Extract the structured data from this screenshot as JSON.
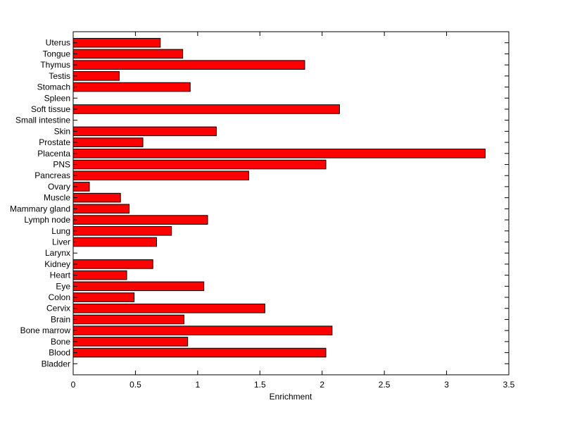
{
  "chart_data": {
    "type": "bar",
    "orientation": "horizontal",
    "title": "",
    "xlabel": "Enrichment",
    "ylabel": "",
    "xlim": [
      0,
      3.5
    ],
    "xticks": [
      "0",
      "0.5",
      "1",
      "1.5",
      "2",
      "2.5",
      "3",
      "3.5"
    ],
    "grid": false,
    "bar_color": "#ff0000",
    "categories": [
      "Bladder",
      "Blood",
      "Bone",
      "Bone marrow",
      "Brain",
      "Cervix",
      "Colon",
      "Eye",
      "Heart",
      "Kidney",
      "Larynx",
      "Liver",
      "Lung",
      "Lymph node",
      "Mammary gland",
      "Muscle",
      "Ovary",
      "Pancreas",
      "PNS",
      "Placenta",
      "Prostate",
      "Skin",
      "Small intestine",
      "Soft tissue",
      "Spleen",
      "Stomach",
      "Testis",
      "Thymus",
      "Tongue",
      "Uterus"
    ],
    "values": [
      0,
      2.03,
      0.92,
      2.08,
      0.89,
      1.54,
      0.49,
      1.05,
      0.43,
      0.64,
      0,
      0.67,
      0.79,
      1.08,
      0.45,
      0.38,
      0.13,
      1.41,
      2.03,
      3.31,
      0.56,
      1.15,
      0,
      2.14,
      0,
      0.94,
      0.37,
      1.86,
      0.88,
      0.7
    ]
  }
}
